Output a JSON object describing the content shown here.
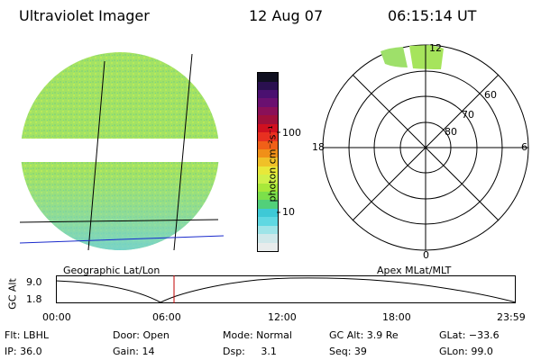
{
  "header": {
    "instrument": "Ultraviolet Imager",
    "date": "12 Aug 07",
    "time": "06:15:14 UT"
  },
  "colorbar": {
    "unit_label": "photon cm⁻²s⁻¹",
    "ticks": [
      "100",
      "10"
    ],
    "colors": [
      "#e8ecec",
      "#cfe8ea",
      "#9ee4e8",
      "#5fd8e2",
      "#3ec9d6",
      "#52d07a",
      "#7ce04a",
      "#a8e83a",
      "#d0f04a",
      "#e8e83a",
      "#f0c028",
      "#f09018",
      "#f06018",
      "#e83020",
      "#d01020",
      "#a0103a",
      "#8a1058",
      "#6a1070",
      "#4a1070",
      "#2a1050",
      "#101020"
    ]
  },
  "left_panel": {
    "caption": "Geographic Lat/Lon",
    "image_fill": "#9fe06a"
  },
  "right_panel": {
    "caption": "Apex MLat/MLT",
    "mlt_labels": {
      "top": "12",
      "left": "18",
      "right": "6",
      "bottom": "0"
    },
    "lat_labels": [
      "60",
      "70",
      "80"
    ]
  },
  "altitude_plot": {
    "ylabel": "GC Alt",
    "ytick_top": "9.0",
    "ytick_bottom": "1.8",
    "xticks": [
      "00:00",
      "06:00",
      "12:00",
      "18:00",
      "23:59"
    ],
    "marker_color": "#c00000"
  },
  "info": {
    "flt": "Flt: LBHL",
    "ip": "IP: 36.0",
    "door": "Door: Open",
    "gain": "Gain: 14",
    "mode": "Mode: Normal",
    "dsp": "Dsp:     3.1",
    "gc_alt": "GC Alt: 3.9 Re",
    "seq": "Seq: 39",
    "glat": "GLat: −33.6",
    "glon": "GLon: 99.0"
  }
}
